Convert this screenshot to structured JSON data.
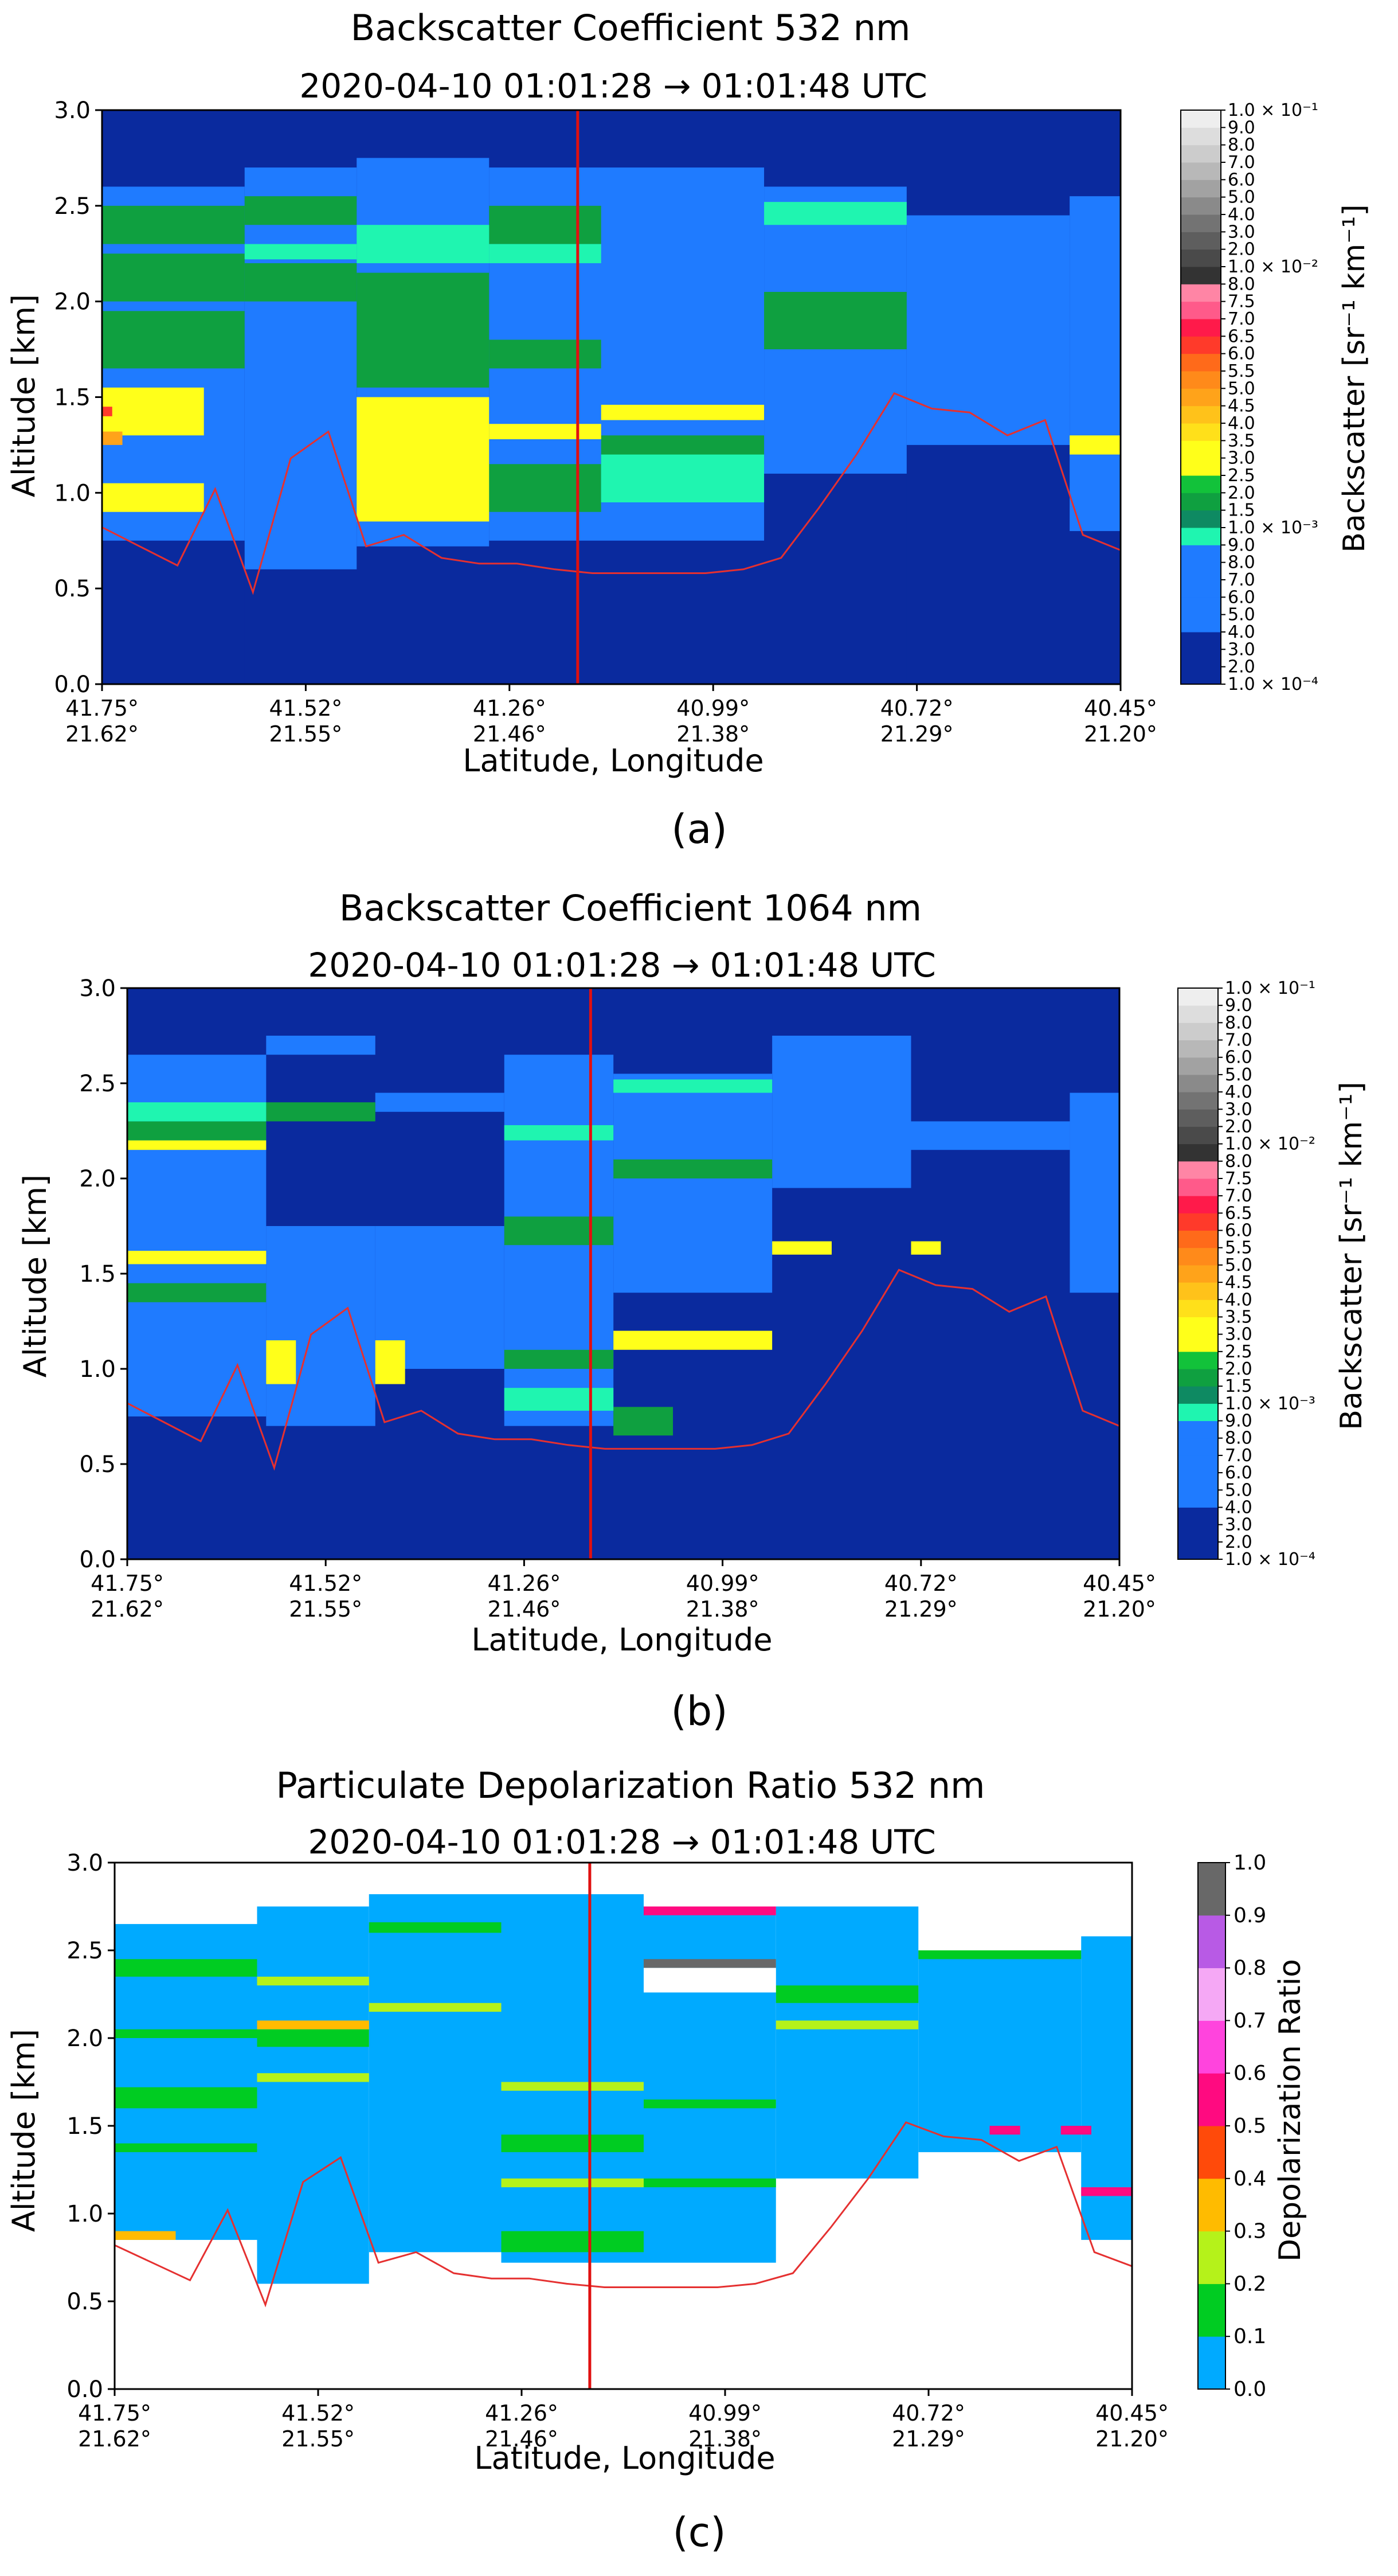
{
  "figure_type": "heatmap",
  "chart_data": [
    {
      "type": "heatmap",
      "panel_label": "(a)",
      "title": "Backscatter Coefficient 532 nm",
      "subtitle": "2020-04-10 01:01:28 → 01:01:48 UTC",
      "xlabel": "Latitude, Longitude",
      "ylabel": "Altitude [km]",
      "ylim": [
        0.0,
        3.0
      ],
      "yticks": [
        "0.0",
        "0.5",
        "1.0",
        "1.5",
        "2.0",
        "2.5",
        "3.0"
      ],
      "xticks_lat": [
        "41.75°",
        "41.52°",
        "41.26°",
        "40.99°",
        "40.72°",
        "40.45°"
      ],
      "xticks_lon": [
        "21.62°",
        "21.55°",
        "21.46°",
        "21.38°",
        "21.29°",
        "21.20°"
      ],
      "colorbar_label": "Backscatter [sr⁻¹ km⁻¹]",
      "colorbar_scale": "log",
      "colorbar_range": [
        0.0001,
        0.1
      ],
      "colorbar_ticks": [
        "1.0 × 10⁻⁴",
        "2.0",
        "3.0",
        "4.0",
        "5.0",
        "6.0",
        "7.0",
        "8.0",
        "9.0",
        "1.0 × 10⁻³",
        "1.5",
        "2.0",
        "2.5",
        "3.0",
        "3.5",
        "4.0",
        "4.5",
        "5.0",
        "5.5",
        "6.0",
        "6.5",
        "7.0",
        "7.5",
        "8.0",
        "1.0 × 10⁻²",
        "2.0",
        "3.0",
        "4.0",
        "5.0",
        "6.0",
        "7.0",
        "8.0",
        "9.0",
        "1.0 × 10⁻¹"
      ],
      "colorbar_colors": [
        "#0a2a9e",
        "#0a2a9e",
        "#0a2a9e",
        "#1f7bff",
        "#1f7bff",
        "#1f7bff",
        "#1f7bff",
        "#1f7bff",
        "#1ff5b0",
        "#0e8a62",
        "#0fa040",
        "#12c23a",
        "#ffff1a",
        "#ffff1a",
        "#ffe01a",
        "#ffc21a",
        "#ffa31a",
        "#ff8a1a",
        "#ff6a1a",
        "#ff3a2a",
        "#ff1a4a",
        "#ff5a8a",
        "#ff85a5",
        "#333333",
        "#4a4a4a",
        "#5e5e5e",
        "#737373",
        "#8a8a8a",
        "#a2a2a2",
        "#b8b8b8",
        "#cccccc",
        "#dddddd",
        "#eeeeee",
        "#ffffff"
      ],
      "curtain_position": "vertical red line at about 41.15° / 21.43°",
      "surface_line": "thin red terrain line",
      "surface_altitude_km": [
        0.82,
        0.72,
        0.62,
        1.02,
        0.48,
        1.18,
        1.32,
        0.72,
        0.78,
        0.66,
        0.63,
        0.63,
        0.6,
        0.58,
        0.58,
        0.58,
        0.58,
        0.6,
        0.66,
        0.92,
        1.2,
        1.52,
        1.44,
        1.42,
        1.3,
        1.38,
        0.78,
        0.7
      ],
      "layers": [
        {
          "x0": 0.0,
          "x1": 0.14,
          "y0": 0.0,
          "y1": 2.6,
          "level": "2e-4"
        },
        {
          "x0": 0.14,
          "x1": 0.25,
          "y0": 0.0,
          "y1": 2.7,
          "level": "2e-4"
        },
        {
          "x0": 0.25,
          "x1": 0.38,
          "y0": 0.0,
          "y1": 2.75,
          "level": "2e-4"
        },
        {
          "x0": 0.38,
          "x1": 0.65,
          "y0": 0.0,
          "y1": 2.7,
          "level": "2e-4"
        },
        {
          "x0": 0.65,
          "x1": 0.79,
          "y0": 0.0,
          "y1": 2.6,
          "level": "2e-4"
        },
        {
          "x0": 0.79,
          "x1": 0.95,
          "y0": 0.0,
          "y1": 2.45,
          "level": "2e-4"
        },
        {
          "x0": 0.95,
          "x1": 1.0,
          "y0": 0.0,
          "y1": 2.55,
          "level": "2e-4"
        },
        {
          "x0": 0.0,
          "x1": 0.14,
          "y0": 0.75,
          "y1": 2.6,
          "level": "6e-4"
        },
        {
          "x0": 0.14,
          "x1": 0.25,
          "y0": 0.6,
          "y1": 2.7,
          "level": "6e-4"
        },
        {
          "x0": 0.25,
          "x1": 0.38,
          "y0": 0.72,
          "y1": 2.75,
          "level": "6e-4"
        },
        {
          "x0": 0.38,
          "x1": 0.65,
          "y0": 0.75,
          "y1": 2.7,
          "level": "6e-4"
        },
        {
          "x0": 0.65,
          "x1": 0.79,
          "y0": 1.1,
          "y1": 2.6,
          "level": "6e-4"
        },
        {
          "x0": 0.79,
          "x1": 0.95,
          "y0": 1.25,
          "y1": 2.45,
          "level": "6e-4"
        },
        {
          "x0": 0.95,
          "x1": 1.0,
          "y0": 0.8,
          "y1": 2.55,
          "level": "6e-4"
        },
        {
          "x0": 0.0,
          "x1": 0.14,
          "y0": 2.3,
          "y1": 2.5,
          "level": "1.2e-3"
        },
        {
          "x0": 0.0,
          "x1": 0.14,
          "y0": 2.0,
          "y1": 2.25,
          "level": "1.2e-3"
        },
        {
          "x0": 0.0,
          "x1": 0.14,
          "y0": 1.65,
          "y1": 1.95,
          "level": "1.2e-3"
        },
        {
          "x0": 0.14,
          "x1": 0.25,
          "y0": 2.4,
          "y1": 2.55,
          "level": "1.2e-3"
        },
        {
          "x0": 0.14,
          "x1": 0.25,
          "y0": 2.0,
          "y1": 2.2,
          "level": "1.2e-3"
        },
        {
          "x0": 0.25,
          "x1": 0.38,
          "y0": 1.55,
          "y1": 2.15,
          "level": "1.2e-3"
        },
        {
          "x0": 0.38,
          "x1": 0.49,
          "y0": 2.3,
          "y1": 2.5,
          "level": "1.2e-3"
        },
        {
          "x0": 0.38,
          "x1": 0.49,
          "y0": 1.65,
          "y1": 1.8,
          "level": "1.2e-3"
        },
        {
          "x0": 0.38,
          "x1": 0.49,
          "y0": 0.9,
          "y1": 1.15,
          "level": "1.2e-3"
        },
        {
          "x0": 0.49,
          "x1": 0.65,
          "y0": 1.15,
          "y1": 1.3,
          "level": "1.2e-3"
        },
        {
          "x0": 0.65,
          "x1": 0.79,
          "y0": 1.75,
          "y1": 2.05,
          "level": "1.2e-3"
        },
        {
          "x0": 0.0,
          "x1": 0.1,
          "y0": 1.3,
          "y1": 1.55,
          "level": "2.2e-3"
        },
        {
          "x0": 0.0,
          "x1": 0.1,
          "y0": 0.9,
          "y1": 1.05,
          "level": "2.2e-3"
        },
        {
          "x0": 0.25,
          "x1": 0.38,
          "y0": 0.85,
          "y1": 1.5,
          "level": "2.2e-3"
        },
        {
          "x0": 0.38,
          "x1": 0.49,
          "y0": 1.28,
          "y1": 1.36,
          "level": "2.2e-3"
        },
        {
          "x0": 0.49,
          "x1": 0.65,
          "y0": 1.38,
          "y1": 1.46,
          "level": "2.2e-3"
        },
        {
          "x0": 0.95,
          "x1": 1.0,
          "y0": 1.2,
          "y1": 1.3,
          "level": "2.2e-3"
        },
        {
          "x0": 0.38,
          "x1": 0.49,
          "y0": 2.2,
          "y1": 2.3,
          "level": "9e-4"
        },
        {
          "x0": 0.25,
          "x1": 0.38,
          "y0": 2.2,
          "y1": 2.4,
          "level": "9e-4"
        },
        {
          "x0": 0.49,
          "x1": 0.65,
          "y0": 0.95,
          "y1": 1.2,
          "level": "9e-4"
        },
        {
          "x0": 0.65,
          "x1": 0.79,
          "y0": 2.4,
          "y1": 2.52,
          "level": "9e-4"
        },
        {
          "x0": 0.14,
          "x1": 0.25,
          "y0": 2.22,
          "y1": 2.3,
          "level": "9e-4"
        },
        {
          "x0": 0.0,
          "x1": 0.01,
          "y0": 1.4,
          "y1": 1.45,
          "level": "4.5e-3"
        },
        {
          "x0": 0.0,
          "x1": 0.02,
          "y0": 1.25,
          "y1": 1.32,
          "level": "3.5e-3"
        }
      ]
    },
    {
      "type": "heatmap",
      "panel_label": "(b)",
      "title": "Backscatter Coefficient 1064 nm",
      "subtitle": "2020-04-10 01:01:28 → 01:01:48 UTC",
      "xlabel": "Latitude, Longitude",
      "ylabel": "Altitude [km]",
      "ylim": [
        0.0,
        3.0
      ],
      "yticks": [
        "0.0",
        "0.5",
        "1.0",
        "1.5",
        "2.0",
        "2.5",
        "3.0"
      ],
      "xticks_lat": [
        "41.75°",
        "41.52°",
        "41.26°",
        "40.99°",
        "40.72°",
        "40.45°"
      ],
      "xticks_lon": [
        "21.62°",
        "21.55°",
        "21.46°",
        "21.38°",
        "21.29°",
        "21.20°"
      ],
      "colorbar_label": "Backscatter [sr⁻¹ km⁻¹]",
      "colorbar_scale": "log",
      "colorbar_range": [
        0.0001,
        0.1
      ],
      "curtain_position": "vertical red line at about 41.15° / 21.43°",
      "surface_line": "thin red terrain line",
      "layers": [
        {
          "x0": 0.0,
          "x1": 0.14,
          "y0": 0.75,
          "y1": 2.65,
          "level": "6e-4"
        },
        {
          "x0": 0.14,
          "x1": 0.25,
          "y0": 2.65,
          "y1": 2.75,
          "level": "6e-4"
        },
        {
          "x0": 0.14,
          "x1": 0.25,
          "y0": 0.7,
          "y1": 1.75,
          "level": "6e-4"
        },
        {
          "x0": 0.25,
          "x1": 0.38,
          "y0": 2.35,
          "y1": 2.45,
          "level": "6e-4"
        },
        {
          "x0": 0.25,
          "x1": 0.38,
          "y0": 1.0,
          "y1": 1.75,
          "level": "6e-4"
        },
        {
          "x0": 0.38,
          "x1": 0.49,
          "y0": 0.7,
          "y1": 2.65,
          "level": "6e-4"
        },
        {
          "x0": 0.49,
          "x1": 0.65,
          "y0": 1.4,
          "y1": 2.55,
          "level": "6e-4"
        },
        {
          "x0": 0.65,
          "x1": 0.79,
          "y0": 1.95,
          "y1": 2.75,
          "level": "6e-4"
        },
        {
          "x0": 0.79,
          "x1": 0.95,
          "y0": 2.15,
          "y1": 2.3,
          "level": "6e-4"
        },
        {
          "x0": 0.95,
          "x1": 1.0,
          "y0": 1.4,
          "y1": 2.45,
          "level": "6e-4"
        },
        {
          "x0": 0.0,
          "x1": 0.14,
          "y0": 2.2,
          "y1": 2.3,
          "level": "1.2e-3"
        },
        {
          "x0": 0.0,
          "x1": 0.14,
          "y0": 1.35,
          "y1": 1.45,
          "level": "1.2e-3"
        },
        {
          "x0": 0.14,
          "x1": 0.25,
          "y0": 2.3,
          "y1": 2.4,
          "level": "1.2e-3"
        },
        {
          "x0": 0.38,
          "x1": 0.49,
          "y0": 1.65,
          "y1": 1.8,
          "level": "1.2e-3"
        },
        {
          "x0": 0.38,
          "x1": 0.49,
          "y0": 1.0,
          "y1": 1.1,
          "level": "1.2e-3"
        },
        {
          "x0": 0.49,
          "x1": 0.65,
          "y0": 2.0,
          "y1": 2.1,
          "level": "1.2e-3"
        },
        {
          "x0": 0.49,
          "x1": 0.55,
          "y0": 0.65,
          "y1": 0.8,
          "level": "1.2e-3"
        },
        {
          "x0": 0.38,
          "x1": 0.49,
          "y0": 0.78,
          "y1": 0.9,
          "level": "9e-4"
        },
        {
          "x0": 0.38,
          "x1": 0.49,
          "y0": 2.2,
          "y1": 2.28,
          "level": "9e-4"
        },
        {
          "x0": 0.0,
          "x1": 0.14,
          "y0": 2.3,
          "y1": 2.4,
          "level": "9e-4"
        },
        {
          "x0": 0.49,
          "x1": 0.65,
          "y0": 2.45,
          "y1": 2.52,
          "level": "9e-4"
        },
        {
          "x0": 0.0,
          "x1": 0.14,
          "y0": 1.55,
          "y1": 1.62,
          "level": "2.2e-3"
        },
        {
          "x0": 0.0,
          "x1": 0.14,
          "y0": 2.15,
          "y1": 2.2,
          "level": "2.2e-3"
        },
        {
          "x0": 0.14,
          "x1": 0.17,
          "y0": 0.92,
          "y1": 1.15,
          "level": "2.2e-3"
        },
        {
          "x0": 0.25,
          "x1": 0.28,
          "y0": 0.92,
          "y1": 1.15,
          "level": "2.2e-3"
        },
        {
          "x0": 0.65,
          "x1": 0.71,
          "y0": 1.6,
          "y1": 1.67,
          "level": "2.2e-3"
        },
        {
          "x0": 0.79,
          "x1": 0.82,
          "y0": 1.6,
          "y1": 1.67,
          "level": "2.2e-3"
        },
        {
          "x0": 0.49,
          "x1": 0.65,
          "y0": 1.1,
          "y1": 1.2,
          "level": "2.2e-3"
        }
      ]
    },
    {
      "type": "heatmap",
      "panel_label": "(c)",
      "title": "Particulate Depolarization Ratio 532 nm",
      "subtitle": "2020-04-10 01:01:28 → 01:01:48 UTC",
      "xlabel": "Latitude, Longitude",
      "ylabel": "Altitude [km]",
      "ylim": [
        0.0,
        3.0
      ],
      "yticks": [
        "0.0",
        "0.5",
        "1.0",
        "1.5",
        "2.0",
        "2.5",
        "3.0"
      ],
      "xticks_lat": [
        "41.75°",
        "41.52°",
        "41.26°",
        "40.99°",
        "40.72°",
        "40.45°"
      ],
      "xticks_lon": [
        "21.62°",
        "21.55°",
        "21.46°",
        "21.38°",
        "21.29°",
        "21.20°"
      ],
      "colorbar_label": "Depolarization Ratio",
      "colorbar_scale": "linear",
      "colorbar_range": [
        0.0,
        1.0
      ],
      "colorbar_ticks": [
        "0.0",
        "0.1",
        "0.2",
        "0.3",
        "0.4",
        "0.5",
        "0.6",
        "0.7",
        "0.8",
        "0.9",
        "1.0"
      ],
      "colorbar_colors": [
        "#00aaff",
        "#00cc22",
        "#b5f21a",
        "#ffbb00",
        "#ff4a0a",
        "#ff0a80",
        "#ff44dd",
        "#f5a8f5",
        "#b85ae5",
        "#686868"
      ],
      "curtain_position": "vertical red line at about 41.15° / 21.43°",
      "surface_line": "thin red terrain line",
      "layers": [
        {
          "x0": 0.0,
          "x1": 0.14,
          "y0": 0.85,
          "y1": 2.65,
          "level": "0.05"
        },
        {
          "x0": 0.14,
          "x1": 0.25,
          "y0": 0.6,
          "y1": 2.75,
          "level": "0.05"
        },
        {
          "x0": 0.25,
          "x1": 0.38,
          "y0": 0.78,
          "y1": 2.82,
          "level": "0.05"
        },
        {
          "x0": 0.38,
          "x1": 0.52,
          "y0": 0.72,
          "y1": 2.82,
          "level": "0.05"
        },
        {
          "x0": 0.52,
          "x1": 0.65,
          "y0": 0.72,
          "y1": 2.75,
          "level": "0.05"
        },
        {
          "x0": 0.65,
          "x1": 0.79,
          "y0": 1.2,
          "y1": 2.75,
          "level": "0.05"
        },
        {
          "x0": 0.79,
          "x1": 0.95,
          "y0": 1.35,
          "y1": 2.5,
          "level": "0.05"
        },
        {
          "x0": 0.95,
          "x1": 1.0,
          "y0": 0.85,
          "y1": 2.58,
          "level": "0.05"
        },
        {
          "x0": 0.0,
          "x1": 0.14,
          "y0": 2.35,
          "y1": 2.45,
          "level": "0.15"
        },
        {
          "x0": 0.0,
          "x1": 0.14,
          "y0": 1.6,
          "y1": 1.72,
          "level": "0.15"
        },
        {
          "x0": 0.0,
          "x1": 0.14,
          "y0": 1.35,
          "y1": 1.4,
          "level": "0.15"
        },
        {
          "x0": 0.0,
          "x1": 0.14,
          "y0": 2.0,
          "y1": 2.05,
          "level": "0.15"
        },
        {
          "x0": 0.14,
          "x1": 0.25,
          "y0": 1.95,
          "y1": 2.05,
          "level": "0.15"
        },
        {
          "x0": 0.25,
          "x1": 0.38,
          "y0": 2.6,
          "y1": 2.66,
          "level": "0.15"
        },
        {
          "x0": 0.38,
          "x1": 0.52,
          "y0": 1.35,
          "y1": 1.45,
          "level": "0.15"
        },
        {
          "x0": 0.38,
          "x1": 0.52,
          "y0": 0.78,
          "y1": 0.9,
          "level": "0.15"
        },
        {
          "x0": 0.52,
          "x1": 0.65,
          "y0": 1.6,
          "y1": 1.65,
          "level": "0.15"
        },
        {
          "x0": 0.52,
          "x1": 0.65,
          "y0": 1.15,
          "y1": 1.2,
          "level": "0.15"
        },
        {
          "x0": 0.65,
          "x1": 0.79,
          "y0": 2.2,
          "y1": 2.3,
          "level": "0.15"
        },
        {
          "x0": 0.79,
          "x1": 0.95,
          "y0": 2.45,
          "y1": 2.5,
          "level": "0.15"
        },
        {
          "x0": 0.14,
          "x1": 0.25,
          "y0": 2.3,
          "y1": 2.35,
          "level": "0.25"
        },
        {
          "x0": 0.14,
          "x1": 0.25,
          "y0": 1.75,
          "y1": 1.8,
          "level": "0.25"
        },
        {
          "x0": 0.25,
          "x1": 0.38,
          "y0": 2.15,
          "y1": 2.2,
          "level": "0.25"
        },
        {
          "x0": 0.38,
          "x1": 0.52,
          "y0": 1.7,
          "y1": 1.75,
          "level": "0.25"
        },
        {
          "x0": 0.38,
          "x1": 0.52,
          "y0": 1.15,
          "y1": 1.2,
          "level": "0.25"
        },
        {
          "x0": 0.65,
          "x1": 0.79,
          "y0": 2.05,
          "y1": 2.1,
          "level": "0.25"
        },
        {
          "x0": 0.14,
          "x1": 0.25,
          "y0": 2.05,
          "y1": 2.1,
          "level": "0.35"
        },
        {
          "x0": 0.0,
          "x1": 0.06,
          "y0": 0.85,
          "y1": 0.9,
          "level": "0.35"
        },
        {
          "x0": 0.52,
          "x1": 0.65,
          "y0": 2.7,
          "y1": 2.75,
          "level": "0.55"
        },
        {
          "x0": 0.86,
          "x1": 0.89,
          "y0": 1.45,
          "y1": 1.5,
          "level": "0.55"
        },
        {
          "x0": 0.93,
          "x1": 0.96,
          "y0": 1.45,
          "y1": 1.5,
          "level": "0.55"
        },
        {
          "x0": 0.95,
          "x1": 1.0,
          "y0": 1.1,
          "y1": 1.15,
          "level": "0.55"
        },
        {
          "x0": 0.52,
          "x1": 0.65,
          "y0": 2.4,
          "y1": 2.45,
          "level": "0.95"
        },
        {
          "x0": 0.52,
          "x1": 0.65,
          "y0": 2.26,
          "y1": 2.4,
          "level": "none"
        }
      ]
    }
  ]
}
